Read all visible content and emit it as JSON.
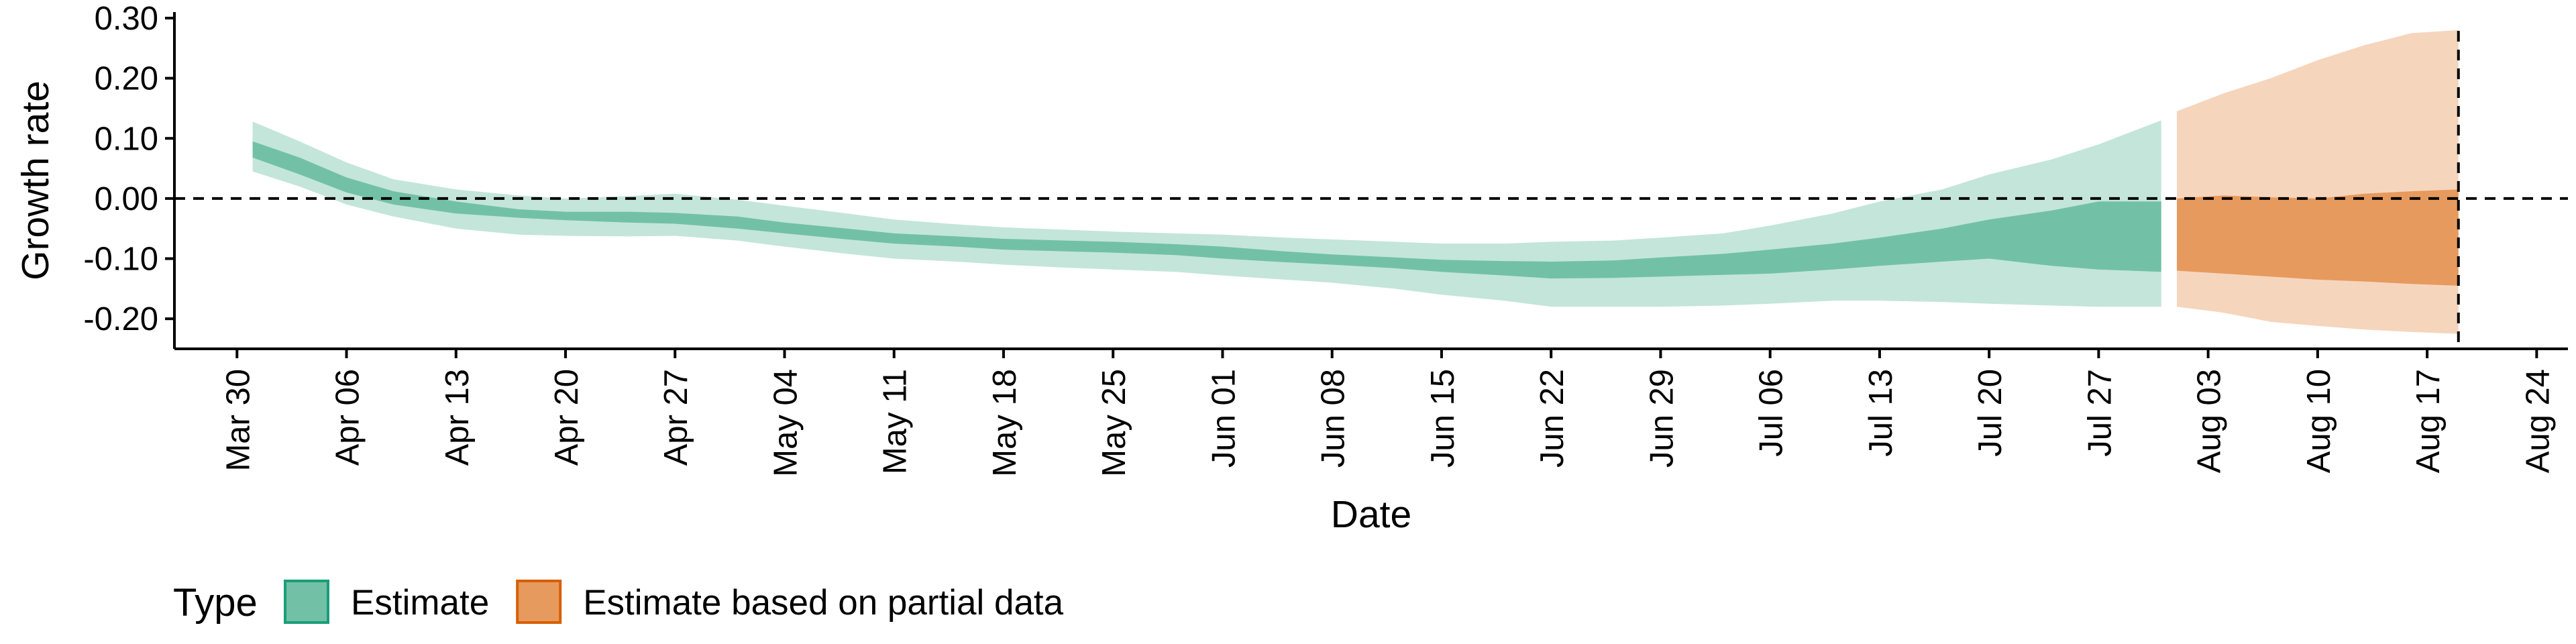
{
  "chart_data": {
    "type": "area",
    "xlabel": "Date",
    "ylabel": "Growth rate",
    "ylim": [
      -0.25,
      0.31
    ],
    "xlim": [
      "2020-03-26",
      "2020-08-26"
    ],
    "y_ticks": [
      {
        "value": 0.3,
        "label": "0.30"
      },
      {
        "value": 0.2,
        "label": "0.20"
      },
      {
        "value": 0.1,
        "label": "0.10"
      },
      {
        "value": 0.0,
        "label": "0.00"
      },
      {
        "value": -0.1,
        "label": "-0.10"
      },
      {
        "value": -0.2,
        "label": "-0.20"
      }
    ],
    "x_ticks": [
      {
        "date": "2020-03-30",
        "label": "Mar 30"
      },
      {
        "date": "2020-04-06",
        "label": "Apr 06"
      },
      {
        "date": "2020-04-13",
        "label": "Apr 13"
      },
      {
        "date": "2020-04-20",
        "label": "Apr 20"
      },
      {
        "date": "2020-04-27",
        "label": "Apr 27"
      },
      {
        "date": "2020-05-04",
        "label": "May 04"
      },
      {
        "date": "2020-05-11",
        "label": "May 11"
      },
      {
        "date": "2020-05-18",
        "label": "May 18"
      },
      {
        "date": "2020-05-25",
        "label": "May 25"
      },
      {
        "date": "2020-06-01",
        "label": "Jun 01"
      },
      {
        "date": "2020-06-08",
        "label": "Jun 08"
      },
      {
        "date": "2020-06-15",
        "label": "Jun 15"
      },
      {
        "date": "2020-06-22",
        "label": "Jun 22"
      },
      {
        "date": "2020-06-29",
        "label": "Jun 29"
      },
      {
        "date": "2020-07-06",
        "label": "Jul 06"
      },
      {
        "date": "2020-07-13",
        "label": "Jul 13"
      },
      {
        "date": "2020-07-20",
        "label": "Jul 20"
      },
      {
        "date": "2020-07-27",
        "label": "Jul 27"
      },
      {
        "date": "2020-08-03",
        "label": "Aug 03"
      },
      {
        "date": "2020-08-10",
        "label": "Aug 10"
      },
      {
        "date": "2020-08-17",
        "label": "Aug 17"
      },
      {
        "date": "2020-08-24",
        "label": "Aug 24"
      }
    ],
    "reference_lines": [
      {
        "axis": "y",
        "value": 0.0,
        "style": "dashed"
      },
      {
        "axis": "x",
        "value": "2020-08-19",
        "style": "dashed"
      }
    ],
    "grid": false,
    "legend": {
      "title": "Type",
      "position": "bottom-left",
      "entries": [
        {
          "label": "Estimate",
          "fill": "#72c1a6",
          "border": "#1b9e77"
        },
        {
          "label": "Estimate based on partial data",
          "fill": "#e79a5d",
          "border": "#d95f02"
        }
      ]
    },
    "series": [
      {
        "name": "Estimate",
        "color_dark": "#72c1a6",
        "color_light": "#c4e5da",
        "points": [
          {
            "date": "2020-03-31",
            "lo90": 0.045,
            "lo50": 0.068,
            "hi50": 0.095,
            "hi90": 0.128
          },
          {
            "date": "2020-04-03",
            "lo90": 0.02,
            "lo50": 0.04,
            "hi50": 0.068,
            "hi90": 0.095
          },
          {
            "date": "2020-04-06",
            "lo90": -0.01,
            "lo50": 0.01,
            "hi50": 0.035,
            "hi90": 0.06
          },
          {
            "date": "2020-04-09",
            "lo90": -0.03,
            "lo50": -0.01,
            "hi50": 0.012,
            "hi90": 0.032
          },
          {
            "date": "2020-04-13",
            "lo90": -0.05,
            "lo50": -0.025,
            "hi50": -0.005,
            "hi90": 0.015
          },
          {
            "date": "2020-04-17",
            "lo90": -0.06,
            "lo50": -0.032,
            "hi50": -0.018,
            "hi90": 0.005
          },
          {
            "date": "2020-04-20",
            "lo90": -0.062,
            "lo50": -0.036,
            "hi50": -0.022,
            "hi90": 0.0
          },
          {
            "date": "2020-04-24",
            "lo90": -0.063,
            "lo50": -0.04,
            "hi50": -0.022,
            "hi90": 0.004
          },
          {
            "date": "2020-04-27",
            "lo90": -0.062,
            "lo50": -0.042,
            "hi50": -0.024,
            "hi90": 0.008
          },
          {
            "date": "2020-05-01",
            "lo90": -0.07,
            "lo50": -0.05,
            "hi50": -0.03,
            "hi90": -0.002
          },
          {
            "date": "2020-05-04",
            "lo90": -0.08,
            "lo50": -0.058,
            "hi50": -0.04,
            "hi90": -0.012
          },
          {
            "date": "2020-05-08",
            "lo90": -0.092,
            "lo50": -0.068,
            "hi50": -0.05,
            "hi90": -0.025
          },
          {
            "date": "2020-05-11",
            "lo90": -0.1,
            "lo50": -0.075,
            "hi50": -0.058,
            "hi90": -0.035
          },
          {
            "date": "2020-05-15",
            "lo90": -0.105,
            "lo50": -0.08,
            "hi50": -0.063,
            "hi90": -0.043
          },
          {
            "date": "2020-05-18",
            "lo90": -0.11,
            "lo50": -0.085,
            "hi50": -0.067,
            "hi90": -0.048
          },
          {
            "date": "2020-05-22",
            "lo90": -0.115,
            "lo50": -0.088,
            "hi50": -0.07,
            "hi90": -0.052
          },
          {
            "date": "2020-05-25",
            "lo90": -0.118,
            "lo50": -0.09,
            "hi50": -0.072,
            "hi90": -0.055
          },
          {
            "date": "2020-05-29",
            "lo90": -0.122,
            "lo50": -0.094,
            "hi50": -0.076,
            "hi90": -0.058
          },
          {
            "date": "2020-06-01",
            "lo90": -0.128,
            "lo50": -0.1,
            "hi50": -0.08,
            "hi90": -0.06
          },
          {
            "date": "2020-06-05",
            "lo90": -0.135,
            "lo50": -0.106,
            "hi50": -0.088,
            "hi90": -0.065
          },
          {
            "date": "2020-06-08",
            "lo90": -0.14,
            "lo50": -0.11,
            "hi50": -0.093,
            "hi90": -0.068
          },
          {
            "date": "2020-06-12",
            "lo90": -0.15,
            "lo50": -0.116,
            "hi50": -0.098,
            "hi90": -0.072
          },
          {
            "date": "2020-06-15",
            "lo90": -0.16,
            "lo50": -0.122,
            "hi50": -0.102,
            "hi90": -0.075
          },
          {
            "date": "2020-06-19",
            "lo90": -0.17,
            "lo50": -0.128,
            "hi50": -0.104,
            "hi90": -0.075
          },
          {
            "date": "2020-06-22",
            "lo90": -0.18,
            "lo50": -0.133,
            "hi50": -0.105,
            "hi90": -0.072
          },
          {
            "date": "2020-06-26",
            "lo90": -0.18,
            "lo50": -0.132,
            "hi50": -0.103,
            "hi90": -0.07
          },
          {
            "date": "2020-06-29",
            "lo90": -0.18,
            "lo50": -0.13,
            "hi50": -0.098,
            "hi90": -0.065
          },
          {
            "date": "2020-07-03",
            "lo90": -0.178,
            "lo50": -0.127,
            "hi50": -0.092,
            "hi90": -0.058
          },
          {
            "date": "2020-07-06",
            "lo90": -0.175,
            "lo50": -0.125,
            "hi50": -0.085,
            "hi90": -0.045
          },
          {
            "date": "2020-07-10",
            "lo90": -0.17,
            "lo50": -0.118,
            "hi50": -0.075,
            "hi90": -0.025
          },
          {
            "date": "2020-07-13",
            "lo90": -0.17,
            "lo50": -0.112,
            "hi50": -0.065,
            "hi90": -0.005
          },
          {
            "date": "2020-07-17",
            "lo90": -0.172,
            "lo50": -0.105,
            "hi50": -0.05,
            "hi90": 0.015
          },
          {
            "date": "2020-07-20",
            "lo90": -0.175,
            "lo50": -0.1,
            "hi50": -0.035,
            "hi90": 0.04
          },
          {
            "date": "2020-07-24",
            "lo90": -0.178,
            "lo50": -0.112,
            "hi50": -0.02,
            "hi90": 0.065
          },
          {
            "date": "2020-07-27",
            "lo90": -0.18,
            "lo50": -0.118,
            "hi50": -0.005,
            "hi90": 0.09
          },
          {
            "date": "2020-07-31",
            "lo90": -0.18,
            "lo50": -0.122,
            "hi50": -0.005,
            "hi90": 0.13
          }
        ]
      },
      {
        "name": "Estimate based on partial data",
        "color_dark": "#e79a5d",
        "color_light": "#f6d5bd",
        "points": [
          {
            "date": "2020-08-01",
            "lo90": -0.18,
            "lo50": -0.12,
            "hi50": 0.0,
            "hi90": 0.145
          },
          {
            "date": "2020-08-04",
            "lo90": -0.19,
            "lo50": -0.125,
            "hi50": 0.005,
            "hi90": 0.175
          },
          {
            "date": "2020-08-07",
            "lo90": -0.205,
            "lo50": -0.13,
            "hi50": 0.002,
            "hi90": 0.2
          },
          {
            "date": "2020-08-10",
            "lo90": -0.212,
            "lo50": -0.135,
            "hi50": 0.0,
            "hi90": 0.23
          },
          {
            "date": "2020-08-13",
            "lo90": -0.218,
            "lo50": -0.138,
            "hi50": 0.008,
            "hi90": 0.255
          },
          {
            "date": "2020-08-16",
            "lo90": -0.222,
            "lo50": -0.142,
            "hi50": 0.012,
            "hi90": 0.275
          },
          {
            "date": "2020-08-19",
            "lo90": -0.225,
            "lo50": -0.145,
            "hi50": 0.015,
            "hi90": 0.28
          }
        ]
      }
    ]
  }
}
